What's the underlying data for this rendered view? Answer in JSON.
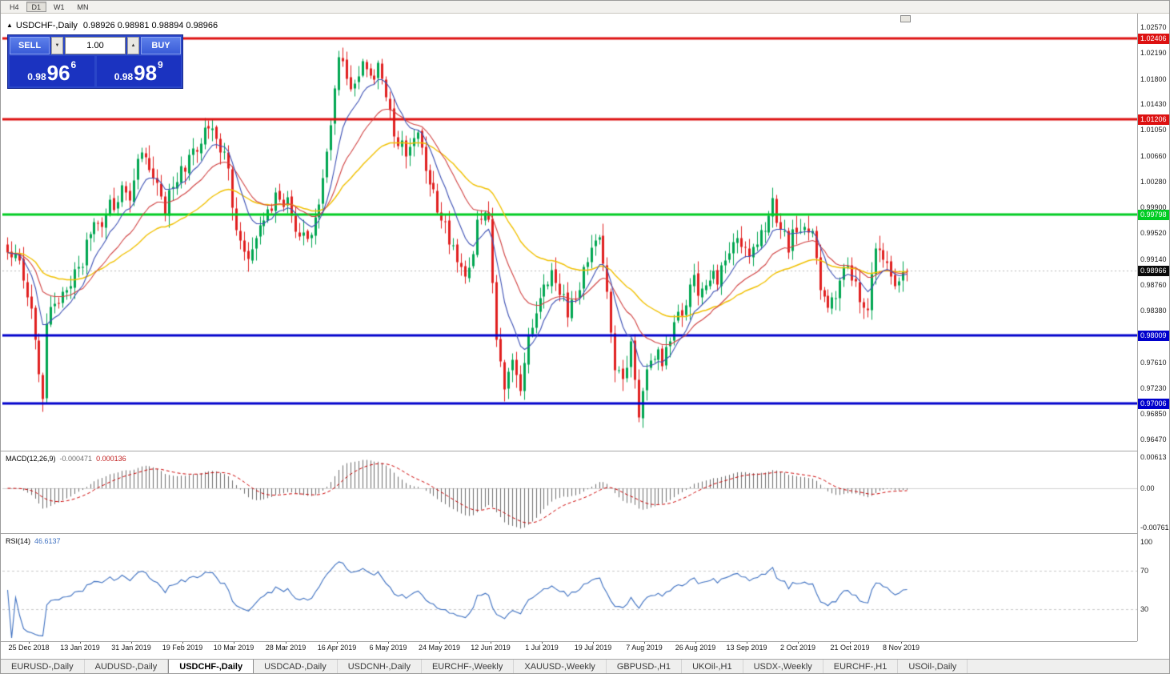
{
  "toolbar": {
    "timeframes": [
      {
        "label": "H4",
        "active": false
      },
      {
        "label": "D1",
        "active": true
      },
      {
        "label": "W1",
        "active": false
      },
      {
        "label": "MN",
        "active": false
      }
    ]
  },
  "icons": {
    "collapse": "▲",
    "spin_up": "▲",
    "spin_down": "▼"
  },
  "chart_title": {
    "symbol": "USDCHF-,Daily",
    "ohlc": "0.98926 0.98981 0.98894 0.98966"
  },
  "one_click": {
    "sell_label": "SELL",
    "buy_label": "BUY",
    "lot_value": "1.00",
    "sell_price": {
      "base": "0.98",
      "big": "96",
      "sup": "6"
    },
    "buy_price": {
      "base": "0.98",
      "big": "98",
      "sup": "9"
    }
  },
  "chart_data": {
    "type": "candlestick",
    "symbol": "USDCHF",
    "period": "Daily",
    "ohlc": {
      "open": 0.98926,
      "high": 0.98981,
      "low": 0.98894,
      "close": 0.98966
    },
    "current_price": 0.98966,
    "current_label": "0.98966",
    "y_ticks": [
      "1.02570",
      "1.02190",
      "1.01800",
      "1.01430",
      "1.01050",
      "1.00660",
      "1.00280",
      "0.99900",
      "0.99520",
      "0.99140",
      "0.98760",
      "0.98380",
      "0.97610",
      "0.97230",
      "0.96850",
      "0.96470"
    ],
    "x_labels": [
      "25 Dec 2018",
      "13 Jan 2019",
      "31 Jan 2019",
      "19 Feb 2019",
      "10 Mar 2019",
      "28 Mar 2019",
      "16 Apr 2019",
      "6 May 2019",
      "24 May 2019",
      "12 Jun 2019",
      "1 Jul 2019",
      "19 Jul 2019",
      "7 Aug 2019",
      "26 Aug 2019",
      "13 Sep 2019",
      "2 Oct 2019",
      "21 Oct 2019",
      "8 Nov 2019"
    ],
    "h_lines": [
      {
        "price": 1.02406,
        "label": "1.02406",
        "color": "#dd1111",
        "width": 3
      },
      {
        "price": 1.01206,
        "label": "1.01206",
        "color": "#dd1111",
        "width": 3
      },
      {
        "price": 0.99798,
        "label": "0.99798",
        "color": "#00cc22",
        "width": 3
      },
      {
        "price": 0.98009,
        "label": "0.98009",
        "color": "#0000cc",
        "width": 3
      },
      {
        "price": 0.97006,
        "label": "0.97006",
        "color": "#0000cc",
        "width": 3
      }
    ],
    "colors": {
      "up": "#00a651",
      "down": "#e02020",
      "ma_fast": "#3c50b4",
      "ma_mid": "#d04040",
      "ma_slow": "#f0c000",
      "macd_hist": "#6e6e6e",
      "macd_signal": "#cc0000",
      "rsi_line": "#3c6fc0",
      "current_line": "#b8b8b8"
    },
    "anchors": [
      [
        0,
        0.9935
      ],
      [
        3,
        0.9902
      ],
      [
        5,
        0.9862
      ],
      [
        7,
        0.9808
      ],
      [
        9,
        0.9706
      ],
      [
        10,
        0.9825
      ],
      [
        12,
        0.9852
      ],
      [
        15,
        0.986
      ],
      [
        18,
        0.9902
      ],
      [
        22,
        0.9958
      ],
      [
        26,
        0.999
      ],
      [
        29,
        1.0022
      ],
      [
        31,
        1.0004
      ],
      [
        33,
        1.0058
      ],
      [
        35,
        1.0078
      ],
      [
        37,
        1.0038
      ],
      [
        40,
        0.9992
      ],
      [
        43,
        1.004
      ],
      [
        46,
        1.0062
      ],
      [
        49,
        1.0094
      ],
      [
        51,
        1.0116
      ],
      [
        53,
        1.0096
      ],
      [
        56,
        1.0042
      ],
      [
        58,
        0.9962
      ],
      [
        60,
        0.9918
      ],
      [
        63,
        0.9948
      ],
      [
        66,
        0.9985
      ],
      [
        69,
        1.0006
      ],
      [
        71,
        0.9992
      ],
      [
        74,
        0.9936
      ],
      [
        77,
        0.9952
      ],
      [
        80,
        1.0022
      ],
      [
        82,
        1.0125
      ],
      [
        84,
        1.0222
      ],
      [
        86,
        1.0192
      ],
      [
        88,
        1.0165
      ],
      [
        90,
        1.0205
      ],
      [
        92,
        1.0178
      ],
      [
        94,
        1.021
      ],
      [
        96,
        1.0152
      ],
      [
        98,
        1.0106
      ],
      [
        100,
        1.0086
      ],
      [
        102,
        1.0068
      ],
      [
        104,
        1.0094
      ],
      [
        106,
        1.0042
      ],
      [
        108,
        1.0016
      ],
      [
        110,
        0.9976
      ],
      [
        112,
        0.9944
      ],
      [
        114,
        0.9902
      ],
      [
        116,
        0.988
      ],
      [
        118,
        0.9934
      ],
      [
        120,
        0.9986
      ],
      [
        122,
        0.9964
      ],
      [
        124,
        0.9792
      ],
      [
        126,
        0.9726
      ],
      [
        128,
        0.9754
      ],
      [
        130,
        0.9718
      ],
      [
        132,
        0.9788
      ],
      [
        134,
        0.9838
      ],
      [
        136,
        0.987
      ],
      [
        138,
        0.9894
      ],
      [
        140,
        0.9868
      ],
      [
        142,
        0.9838
      ],
      [
        144,
        0.9862
      ],
      [
        146,
        0.99
      ],
      [
        148,
        0.9922
      ],
      [
        150,
        0.9938
      ],
      [
        152,
        0.9864
      ],
      [
        154,
        0.9762
      ],
      [
        156,
        0.9738
      ],
      [
        158,
        0.9786
      ],
      [
        160,
        0.9682
      ],
      [
        162,
        0.9746
      ],
      [
        164,
        0.9772
      ],
      [
        166,
        0.9768
      ],
      [
        168,
        0.9806
      ],
      [
        170,
        0.983
      ],
      [
        172,
        0.9858
      ],
      [
        174,
        0.988
      ],
      [
        176,
        0.9864
      ],
      [
        178,
        0.9894
      ],
      [
        180,
        0.988
      ],
      [
        182,
        0.9906
      ],
      [
        184,
        0.993
      ],
      [
        186,
        0.9946
      ],
      [
        188,
        0.9912
      ],
      [
        190,
        0.9928
      ],
      [
        192,
        0.9958
      ],
      [
        194,
        0.9992
      ],
      [
        196,
        0.9952
      ],
      [
        198,
        0.9938
      ],
      [
        200,
        0.9954
      ],
      [
        202,
        0.9968
      ],
      [
        204,
        0.9948
      ],
      [
        206,
        0.9882
      ],
      [
        208,
        0.9842
      ],
      [
        210,
        0.987
      ],
      [
        212,
        0.9904
      ],
      [
        214,
        0.9896
      ],
      [
        216,
        0.9858
      ],
      [
        218,
        0.9848
      ],
      [
        220,
        0.9942
      ],
      [
        222,
        0.9912
      ],
      [
        224,
        0.9882
      ],
      [
        226,
        0.987
      ],
      [
        228,
        0.98966
      ]
    ],
    "indicators": {
      "macd": {
        "name": "MACD(12,26,9)",
        "value": "-0.000471",
        "signal": "0.000136",
        "fast": 12,
        "slow": 26,
        "smoothing": 9,
        "ticks": [
          {
            "label": "0.00613",
            "value": 0.00613
          },
          {
            "label": "0.00",
            "value": 0
          },
          {
            "label": "-0.007612",
            "value": -0.007612
          }
        ]
      },
      "rsi": {
        "name": "RSI(14)",
        "value": "46.6137",
        "period": 14,
        "ticks": [
          {
            "label": "100",
            "value": 100
          },
          {
            "label": "70",
            "value": 70
          },
          {
            "label": "30",
            "value": 30
          }
        ],
        "levels": [
          70,
          30
        ]
      }
    }
  },
  "tabs": {
    "items": [
      {
        "label": "EURUSD-,Daily",
        "active": false
      },
      {
        "label": "AUDUSD-,Daily",
        "active": false
      },
      {
        "label": "USDCHF-,Daily",
        "active": true
      },
      {
        "label": "USDCAD-,Daily",
        "active": false
      },
      {
        "label": "USDCNH-,Daily",
        "active": false
      },
      {
        "label": "EURCHF-,Weekly",
        "active": false
      },
      {
        "label": "XAUUSD-,Weekly",
        "active": false
      },
      {
        "label": "GBPUSD-,H1",
        "active": false
      },
      {
        "label": "UKOil-,H1",
        "active": false
      },
      {
        "label": "USDX-,Weekly",
        "active": false
      },
      {
        "label": "EURCHF-,H1",
        "active": false
      },
      {
        "label": "USOil-,Daily",
        "active": false
      }
    ]
  }
}
